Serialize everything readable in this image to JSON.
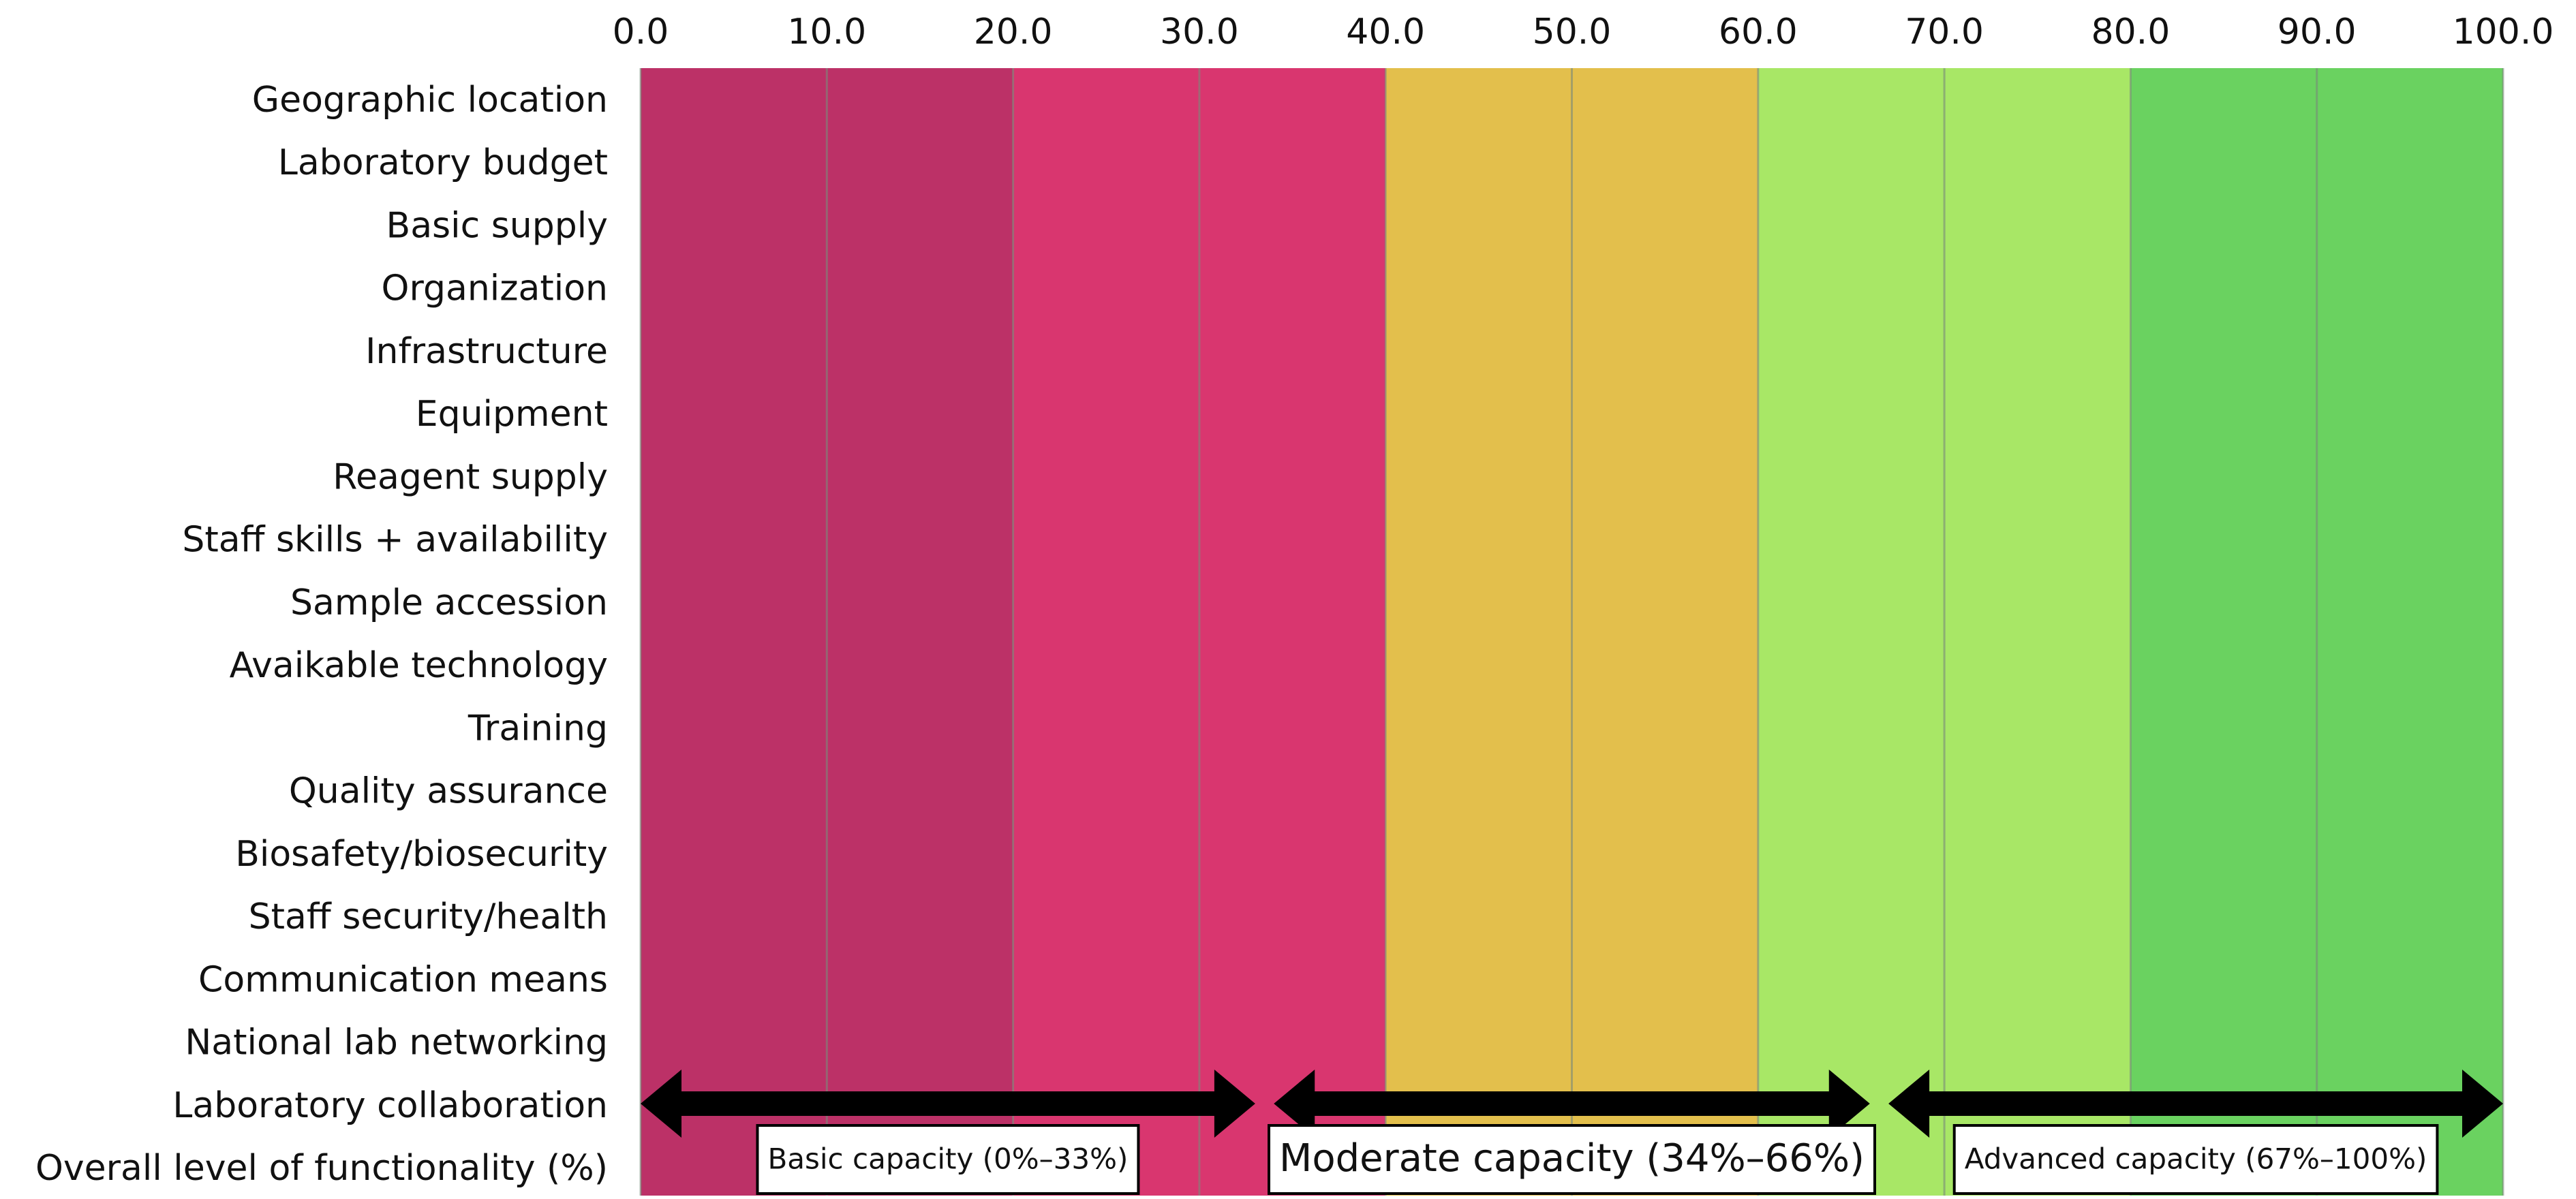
{
  "chart_data": {
    "type": "range",
    "categories": [
      "Geographic location",
      "Laboratory budget",
      "Basic supply",
      "Organization",
      "Infrastructure",
      "Equipment",
      "Reagent supply",
      "Staff skills + availability",
      "Sample accession",
      "Avaikable technology",
      "Training",
      "Quality assurance",
      "Biosafety/biosecurity",
      "Staff security/health",
      "Communication means",
      "National lab networking",
      "Laboratory collaboration",
      "Overall level of functionality (%)"
    ],
    "xlim": [
      0,
      100
    ],
    "xticks": [
      {
        "value": 0,
        "label": "0.0"
      },
      {
        "value": 10,
        "label": "10.0"
      },
      {
        "value": 20,
        "label": "20.0"
      },
      {
        "value": 30,
        "label": "30.0"
      },
      {
        "value": 40,
        "label": "40.0"
      },
      {
        "value": 50,
        "label": "50.0"
      },
      {
        "value": 60,
        "label": "60.0"
      },
      {
        "value": 70,
        "label": "70.0"
      },
      {
        "value": 80,
        "label": "80.0"
      },
      {
        "value": 90,
        "label": "90.0"
      },
      {
        "value": 100,
        "label": "100.0"
      }
    ],
    "grid": true,
    "bands": [
      {
        "from": 0,
        "to": 20,
        "color": "#bc3167"
      },
      {
        "from": 20,
        "to": 40,
        "color": "#d9366f"
      },
      {
        "from": 40,
        "to": 60,
        "color": "#e3bf4c"
      },
      {
        "from": 60,
        "to": 80,
        "color": "#a8e766"
      },
      {
        "from": 80,
        "to": 100,
        "color": "#6ad260"
      }
    ],
    "ranges": [
      {
        "label": "Basic capacity (0%–33%)",
        "from": 0,
        "to": 33
      },
      {
        "label": "Moderate capacity (34%–66%)",
        "from": 34,
        "to": 66
      },
      {
        "label": "Advanced capacity (67%–100%)",
        "from": 67,
        "to": 100
      }
    ]
  }
}
